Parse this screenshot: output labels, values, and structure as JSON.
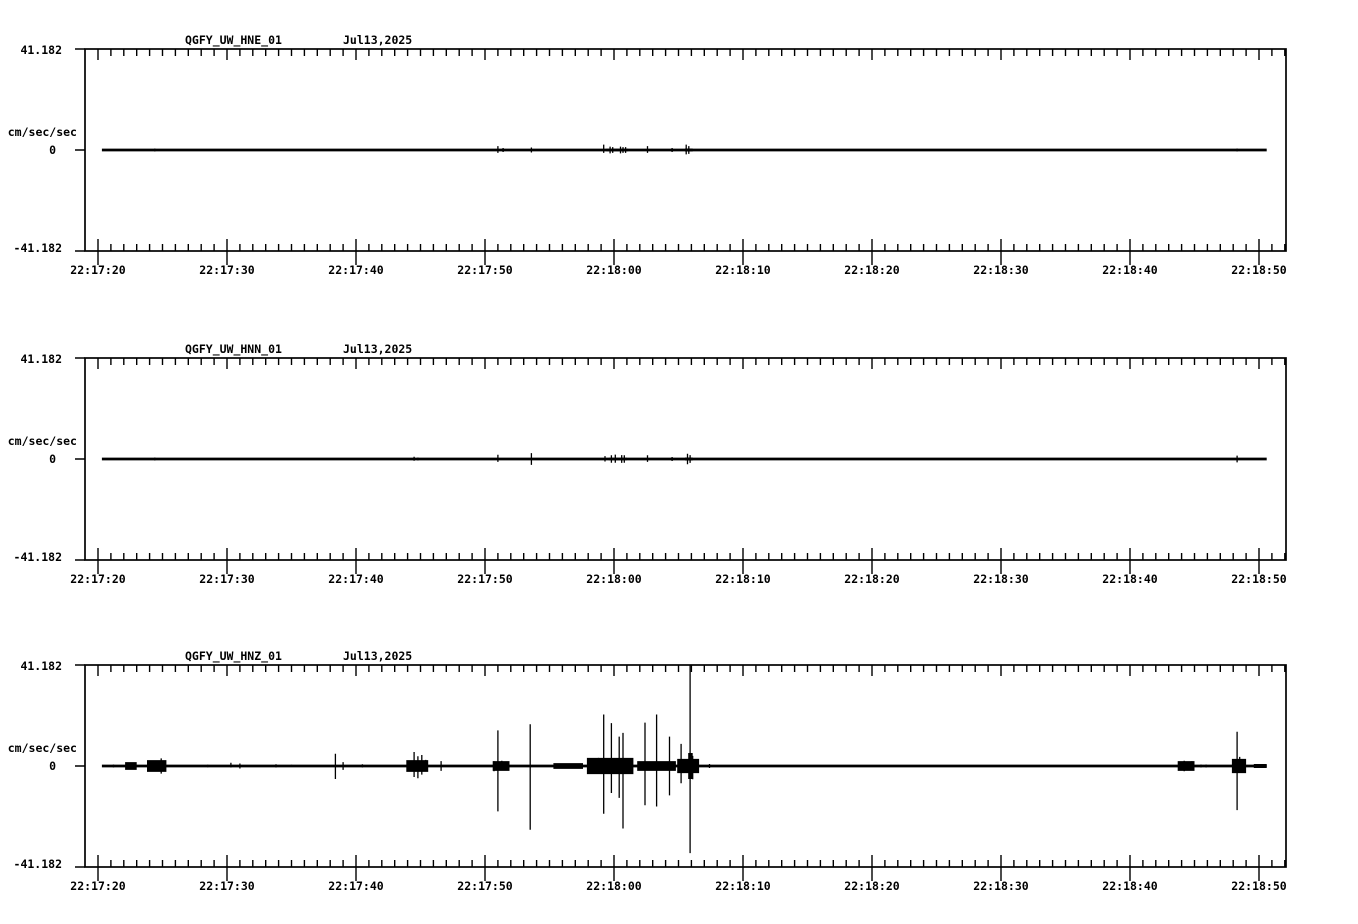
{
  "page": {
    "background_color": "#ffffff",
    "foreground_color": "#000000",
    "description": "Three-channel strong-motion seismogram display for station QGFY (UW network), channels HNE, HNN, HNZ"
  },
  "chart_data": [
    {
      "type": "line",
      "station": "QGFY_UW_HNE_01",
      "date": "Jul13,2025",
      "y_axis": {
        "max": "41.182",
        "unit": "cm/sec/sec",
        "zero": "0",
        "min": "-41.182"
      },
      "ylim": [
        -41.182,
        41.182
      ],
      "x_tick_labels": [
        "22:17:20",
        "22:17:30",
        "22:17:40",
        "22:17:50",
        "22:18:00",
        "22:18:10",
        "22:18:20",
        "22:18:30",
        "22:18:40",
        "22:18:50"
      ],
      "x_tick_interval_s": 10,
      "x_minor_interval_s": 1,
      "trace_span_s": [
        0.3,
        90.6
      ],
      "spike_format": "[seconds_after_22:17:20, up_amplitude_cm_s2, down_amplitude_cm_s2]",
      "spikes": [
        [
          4.4,
          0.6,
          0.6
        ],
        [
          31.0,
          1.6,
          1.2
        ],
        [
          31.4,
          0.8,
          0.8
        ],
        [
          33.6,
          1.0,
          1.0
        ],
        [
          39.2,
          2.2,
          1.2
        ],
        [
          39.7,
          1.4,
          1.4
        ],
        [
          39.9,
          1.2,
          1.2
        ],
        [
          40.5,
          1.4,
          1.4
        ],
        [
          40.7,
          1.2,
          1.2
        ],
        [
          40.9,
          1.2,
          1.2
        ],
        [
          42.6,
          1.6,
          1.2
        ],
        [
          44.5,
          0.8,
          0.8
        ],
        [
          45.6,
          2.2,
          1.8
        ],
        [
          45.8,
          1.6,
          1.6
        ],
        [
          55.2,
          0.4,
          0.4
        ],
        [
          88.3,
          0.6,
          0.6
        ]
      ],
      "band_format": "[t_start_s, t_end_s, envelope_amplitude_cm_s2]",
      "bands": [
        [
          39.4,
          41.1,
          0.5
        ],
        [
          45.5,
          46.1,
          0.6
        ]
      ]
    },
    {
      "type": "line",
      "station": "QGFY_UW_HNN_01",
      "date": "Jul13,2025",
      "y_axis": {
        "max": "41.182",
        "unit": "cm/sec/sec",
        "zero": "0",
        "min": "-41.182"
      },
      "ylim": [
        -41.182,
        41.182
      ],
      "x_tick_labels": [
        "22:17:20",
        "22:17:30",
        "22:17:40",
        "22:17:50",
        "22:18:00",
        "22:18:10",
        "22:18:20",
        "22:18:30",
        "22:18:40",
        "22:18:50"
      ],
      "x_tick_interval_s": 10,
      "x_minor_interval_s": 1,
      "trace_span_s": [
        0.3,
        90.6
      ],
      "spike_format": "[seconds_after_22:17:20, up_amplitude_cm_s2, down_amplitude_cm_s2]",
      "spikes": [
        [
          4.4,
          0.6,
          0.6
        ],
        [
          24.5,
          0.9,
          0.7
        ],
        [
          24.8,
          0.6,
          0.6
        ],
        [
          31.0,
          1.7,
          1.2
        ],
        [
          33.6,
          2.4,
          2.4
        ],
        [
          39.3,
          1.2,
          1.0
        ],
        [
          39.8,
          1.5,
          1.5
        ],
        [
          40.1,
          1.8,
          1.5
        ],
        [
          40.6,
          1.6,
          1.6
        ],
        [
          40.8,
          1.5,
          1.5
        ],
        [
          42.6,
          1.5,
          1.2
        ],
        [
          44.5,
          0.8,
          0.8
        ],
        [
          45.7,
          2.1,
          2.1
        ],
        [
          45.9,
          1.6,
          1.6
        ],
        [
          84.7,
          0.4,
          0.4
        ],
        [
          88.3,
          1.4,
          1.4
        ]
      ],
      "band_format": "[t_start_s, t_end_s, envelope_amplitude_cm_s2]",
      "bands": [
        [
          24.4,
          24.9,
          0.3
        ],
        [
          39.6,
          41.0,
          0.5
        ],
        [
          45.5,
          46.1,
          0.6
        ]
      ]
    },
    {
      "type": "line",
      "station": "QGFY_UW_HNZ_01",
      "date": "Jul13,2025",
      "y_axis": {
        "max": "41.182",
        "unit": "cm/sec/sec",
        "zero": "0",
        "min": "-41.182"
      },
      "ylim": [
        -41.182,
        41.182
      ],
      "x_tick_labels": [
        "22:17:20",
        "22:17:30",
        "22:17:40",
        "22:17:50",
        "22:18:00",
        "22:18:10",
        "22:18:20",
        "22:18:30",
        "22:18:40",
        "22:18:50"
      ],
      "x_tick_interval_s": 10,
      "x_minor_interval_s": 1,
      "trace_span_s": [
        0.3,
        90.6
      ],
      "spike_format": "[seconds_after_22:17:20, up_amplitude_cm_s2, down_amplitude_cm_s2]",
      "spikes": [
        [
          1.2,
          0.6,
          0.6
        ],
        [
          2.3,
          0.9,
          0.9
        ],
        [
          2.5,
          1.0,
          1.0
        ],
        [
          2.8,
          0.8,
          0.8
        ],
        [
          4.0,
          1.4,
          1.2
        ],
        [
          4.2,
          1.9,
          1.6
        ],
        [
          4.4,
          1.2,
          1.4
        ],
        [
          4.7,
          2.1,
          1.9
        ],
        [
          4.9,
          3.1,
          3.1
        ],
        [
          5.1,
          1.2,
          1.2
        ],
        [
          8.5,
          0.5,
          0.5
        ],
        [
          10.3,
          1.3,
          0.6
        ],
        [
          11.0,
          1.0,
          1.0
        ],
        [
          13.8,
          0.7,
          0.6
        ],
        [
          15.0,
          0.5,
          0.4
        ],
        [
          18.4,
          5.0,
          5.3
        ],
        [
          19.0,
          1.6,
          1.6
        ],
        [
          20.5,
          0.7,
          0.6
        ],
        [
          22.3,
          0.3,
          0.3
        ],
        [
          24.3,
          1.9,
          1.5
        ],
        [
          24.5,
          5.7,
          4.5
        ],
        [
          24.8,
          4.0,
          5.0
        ],
        [
          25.1,
          4.5,
          3.5
        ],
        [
          25.4,
          2.5,
          2.0
        ],
        [
          26.6,
          2.0,
          2.0
        ],
        [
          30.7,
          1.9,
          2.1
        ],
        [
          31.0,
          14.5,
          18.5
        ],
        [
          31.3,
          2.1,
          1.6
        ],
        [
          31.6,
          1.2,
          1.2
        ],
        [
          33.5,
          17.0,
          26.0
        ],
        [
          35.6,
          0.6,
          0.6
        ],
        [
          36.1,
          0.8,
          0.8
        ],
        [
          36.5,
          0.8,
          0.8
        ],
        [
          36.9,
          0.7,
          0.7
        ],
        [
          37.4,
          1.0,
          1.0
        ],
        [
          38.2,
          1.2,
          1.2
        ],
        [
          38.5,
          1.0,
          1.0
        ],
        [
          38.8,
          3.3,
          2.5
        ],
        [
          39.0,
          1.6,
          1.6
        ],
        [
          39.2,
          21.0,
          19.5
        ],
        [
          39.5,
          2.1,
          2.1
        ],
        [
          39.8,
          17.5,
          11.0
        ],
        [
          40.1,
          2.3,
          2.3
        ],
        [
          40.4,
          12.0,
          13.0
        ],
        [
          40.7,
          13.5,
          25.5
        ],
        [
          41.0,
          2.5,
          2.5
        ],
        [
          41.3,
          1.4,
          1.4
        ],
        [
          42.1,
          1.0,
          1.0
        ],
        [
          42.4,
          17.7,
          16.0
        ],
        [
          42.8,
          1.2,
          1.2
        ],
        [
          43.3,
          21.0,
          16.5
        ],
        [
          43.7,
          1.0,
          1.0
        ],
        [
          44.3,
          12.0,
          12.0
        ],
        [
          44.6,
          1.2,
          1.2
        ],
        [
          45.2,
          9.0,
          7.0
        ],
        [
          45.5,
          1.6,
          1.6
        ],
        [
          45.9,
          41.0,
          35.5
        ],
        [
          46.1,
          4.1,
          5.4
        ],
        [
          46.3,
          2.5,
          2.5
        ],
        [
          47.4,
          0.8,
          0.8
        ],
        [
          63.7,
          0.3,
          0.3
        ],
        [
          83.9,
          0.8,
          0.8
        ],
        [
          84.2,
          2.1,
          2.1
        ],
        [
          84.5,
          1.2,
          1.2
        ],
        [
          84.8,
          1.9,
          1.2
        ],
        [
          85.5,
          0.6,
          0.6
        ],
        [
          85.9,
          0.6,
          0.6
        ],
        [
          88.0,
          1.4,
          1.4
        ],
        [
          88.3,
          14.0,
          18.0
        ],
        [
          88.5,
          3.7,
          2.5
        ],
        [
          88.8,
          1.6,
          1.6
        ],
        [
          89.8,
          0.4,
          0.4
        ],
        [
          90.2,
          0.6,
          0.6
        ],
        [
          90.5,
          0.4,
          0.4
        ]
      ],
      "band_format": "[t_start_s, t_end_s, envelope_amplitude_cm_s2]",
      "bands": [
        [
          2.1,
          3.0,
          1.6
        ],
        [
          3.8,
          5.3,
          2.4
        ],
        [
          23.9,
          25.6,
          2.4
        ],
        [
          30.6,
          31.9,
          2.0
        ],
        [
          35.3,
          37.6,
          1.2
        ],
        [
          37.9,
          41.5,
          3.3
        ],
        [
          41.8,
          44.8,
          2.0
        ],
        [
          44.9,
          46.6,
          2.9
        ],
        [
          45.75,
          46.1,
          5.3
        ],
        [
          83.7,
          85.0,
          2.0
        ],
        [
          87.9,
          89.0,
          2.9
        ],
        [
          89.6,
          90.6,
          0.8
        ]
      ]
    }
  ]
}
